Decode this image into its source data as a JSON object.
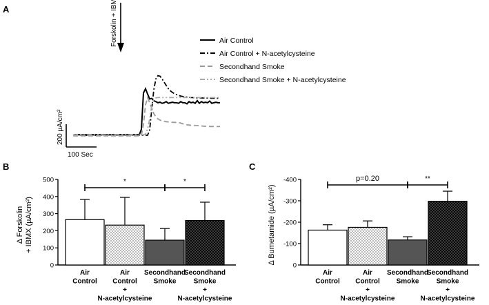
{
  "chart_data": [
    {
      "panel": "A",
      "type": "line",
      "annotation": "Forskolin + IBMX",
      "scale_bar_y": "200 µA/cm²",
      "scale_bar_x": "100 Sec",
      "series": [
        {
          "name": "Air Control",
          "color": "#000000",
          "dash": "solid",
          "values": [
            0,
            5,
            3,
            6,
            2,
            5,
            4,
            6,
            3,
            5,
            4,
            6,
            3,
            5,
            4,
            6,
            3,
            5,
            4,
            6,
            3,
            5,
            4,
            6,
            3,
            5,
            4,
            6,
            3,
            5,
            4,
            5,
            5,
            55,
            390,
            430,
            380,
            335,
            340,
            320,
            310,
            300,
            305,
            295,
            300,
            310,
            295,
            300,
            305,
            300,
            300,
            295,
            310,
            300,
            300,
            290,
            310,
            300,
            305,
            295,
            320,
            295,
            310,
            300,
            305,
            300,
            315,
            295,
            300,
            305,
            300,
            300
          ]
        },
        {
          "name": "Air Control + N-acetylcysteine",
          "color": "#000000",
          "dash": "dash-dot",
          "values": [
            0,
            0,
            0,
            0,
            0,
            0,
            0,
            0,
            0,
            0,
            0,
            0,
            0,
            0,
            0,
            0,
            0,
            0,
            0,
            0,
            0,
            0,
            0,
            0,
            0,
            0,
            0,
            0,
            0,
            0,
            0,
            0,
            0,
            0,
            0,
            0,
            0,
            50,
            240,
            420,
            520,
            550,
            545,
            520,
            490,
            460,
            430,
            410,
            395,
            385,
            375,
            368,
            362,
            358,
            355,
            352,
            350,
            348,
            347,
            346,
            345,
            345,
            344,
            344,
            343,
            343,
            343,
            342,
            342,
            342,
            342,
            342
          ]
        },
        {
          "name": "Secondhand Smoke",
          "color": "#999999",
          "dash": "dashed",
          "values": [
            -5,
            -5,
            -5,
            -5,
            -5,
            -5,
            -5,
            -5,
            -5,
            -5,
            -5,
            -5,
            -5,
            -5,
            -5,
            -5,
            -5,
            -5,
            -5,
            -5,
            -5,
            -5,
            -5,
            -5,
            -5,
            -5,
            -5,
            -5,
            -5,
            -5,
            -5,
            -5,
            -5,
            0,
            100,
            280,
            345,
            300,
            250,
            200,
            170,
            150,
            140,
            132,
            128,
            125,
            123,
            121,
            120,
            119,
            118,
            117,
            112,
            106,
            100,
            96,
            94,
            92,
            91,
            90,
            89,
            88,
            86,
            84,
            83,
            82,
            81,
            81,
            80,
            80,
            80,
            80
          ]
        },
        {
          "name": "Secondhand Smoke + N-acetylcysteine",
          "color": "#aaaaaa",
          "dash": "dash-dot-dot",
          "values": [
            2,
            2,
            2,
            2,
            2,
            2,
            2,
            2,
            2,
            2,
            2,
            2,
            2,
            2,
            2,
            2,
            2,
            2,
            2,
            2,
            2,
            2,
            2,
            2,
            2,
            2,
            2,
            2,
            2,
            2,
            2,
            2,
            2,
            2,
            5,
            10,
            60,
            150,
            270,
            330,
            345,
            348,
            348,
            348,
            348,
            348,
            348,
            348,
            348,
            348,
            348,
            348,
            348,
            348,
            348,
            348,
            348,
            348,
            348,
            348,
            348,
            348,
            348,
            348,
            348,
            348,
            348,
            348,
            348,
            348,
            348,
            348
          ]
        }
      ]
    },
    {
      "panel": "B",
      "type": "bar",
      "ylabel_line1": "Δ  Forskolin",
      "ylabel_line2": "+ IBMX (µA/cm²)",
      "ylim": [
        0,
        500
      ],
      "yticks": [
        "0",
        "100",
        "200",
        "300",
        "400",
        "500"
      ],
      "categories": [
        [
          "Air",
          "Control"
        ],
        [
          "Air",
          "Control",
          "+",
          "N-acetylcysteine"
        ],
        [
          "Secondhand",
          "Smoke"
        ],
        [
          "Secondhand",
          "Smoke",
          "+",
          "N-acetylcysteine"
        ]
      ],
      "values": [
        265,
        233,
        145,
        260
      ],
      "errors": [
        118,
        162,
        68,
        107
      ],
      "fills": [
        "white",
        "checker",
        "#555555",
        "darkcheck"
      ],
      "significance": [
        {
          "from": 0,
          "to": 2,
          "label": "*"
        },
        {
          "from": 2,
          "to": 3,
          "label": "*"
        }
      ]
    },
    {
      "panel": "C",
      "type": "bar",
      "ylabel": "Δ Bumetamide (µA/cm²)",
      "ylim": [
        0,
        -400
      ],
      "yticks": [
        "0",
        "-100",
        "-200",
        "-300",
        "-400"
      ],
      "categories": [
        [
          "Air",
          "Control"
        ],
        [
          "Air",
          "Control",
          "+",
          "N-acetylcysteine"
        ],
        [
          "Secondhand",
          "Smoke"
        ],
        [
          "Secondhand",
          "Smoke",
          "+",
          "N-acetylcysteine"
        ]
      ],
      "values": [
        -163,
        -176,
        -117,
        -298
      ],
      "errors": [
        25,
        30,
        15,
        47
      ],
      "fills": [
        "white",
        "checker",
        "#555555",
        "darkcheck"
      ],
      "significance": [
        {
          "from": 0,
          "to": 2,
          "label": "p=0.20"
        },
        {
          "from": 2,
          "to": 3,
          "label": "**"
        }
      ]
    }
  ]
}
